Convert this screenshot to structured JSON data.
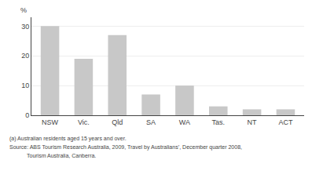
{
  "chart_data": {
    "type": "bar",
    "categories": [
      "NSW",
      "Vic.",
      "Qld",
      "SA",
      "WA",
      "Tas.",
      "NT",
      "ACT"
    ],
    "values": [
      30,
      19,
      27,
      7,
      10,
      3,
      2,
      2
    ],
    "color": "#c8c8c8",
    "ylabel": "%",
    "ylim": [
      0,
      33
    ],
    "yticks": [
      0,
      10,
      20,
      30
    ],
    "grid": true,
    "annotations": [
      "(a) Australian residents aged 15 years and over.",
      "Source: ABS Tourism Research Australia, 2009, Travel by Australians’, December quarter 2008,",
      "Tourism Australia, Canberra."
    ]
  }
}
